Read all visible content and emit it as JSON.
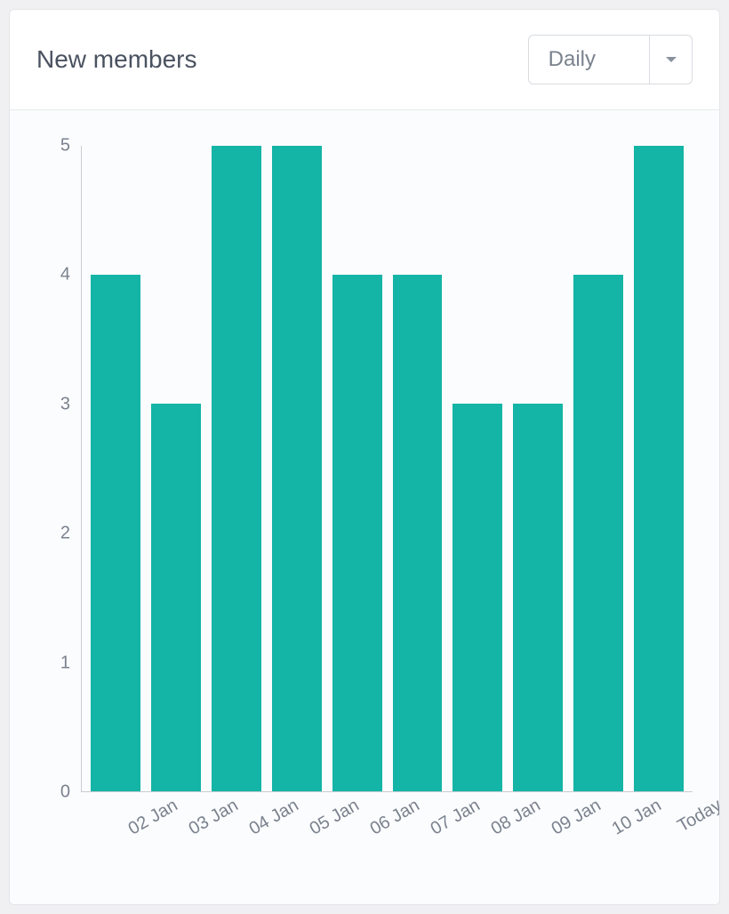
{
  "header": {
    "title": "New members",
    "dropdown": {
      "selected": "Daily"
    }
  },
  "chart": {
    "type": "bar",
    "categories": [
      "02 Jan",
      "03 Jan",
      "04 Jan",
      "05 Jan",
      "06 Jan",
      "07 Jan",
      "08 Jan",
      "09 Jan",
      "10 Jan",
      "Today"
    ],
    "values": [
      4,
      3,
      5,
      5,
      4,
      4,
      3,
      3,
      4,
      5
    ],
    "bar_color": "#14b4a7",
    "background_color": "#fbfcfd",
    "axis_color": "#c8ccd0",
    "label_color": "#7a828e",
    "label_fontsize": 20,
    "ylim": [
      0,
      5
    ],
    "ytick_step": 1,
    "bar_gap": 12
  }
}
